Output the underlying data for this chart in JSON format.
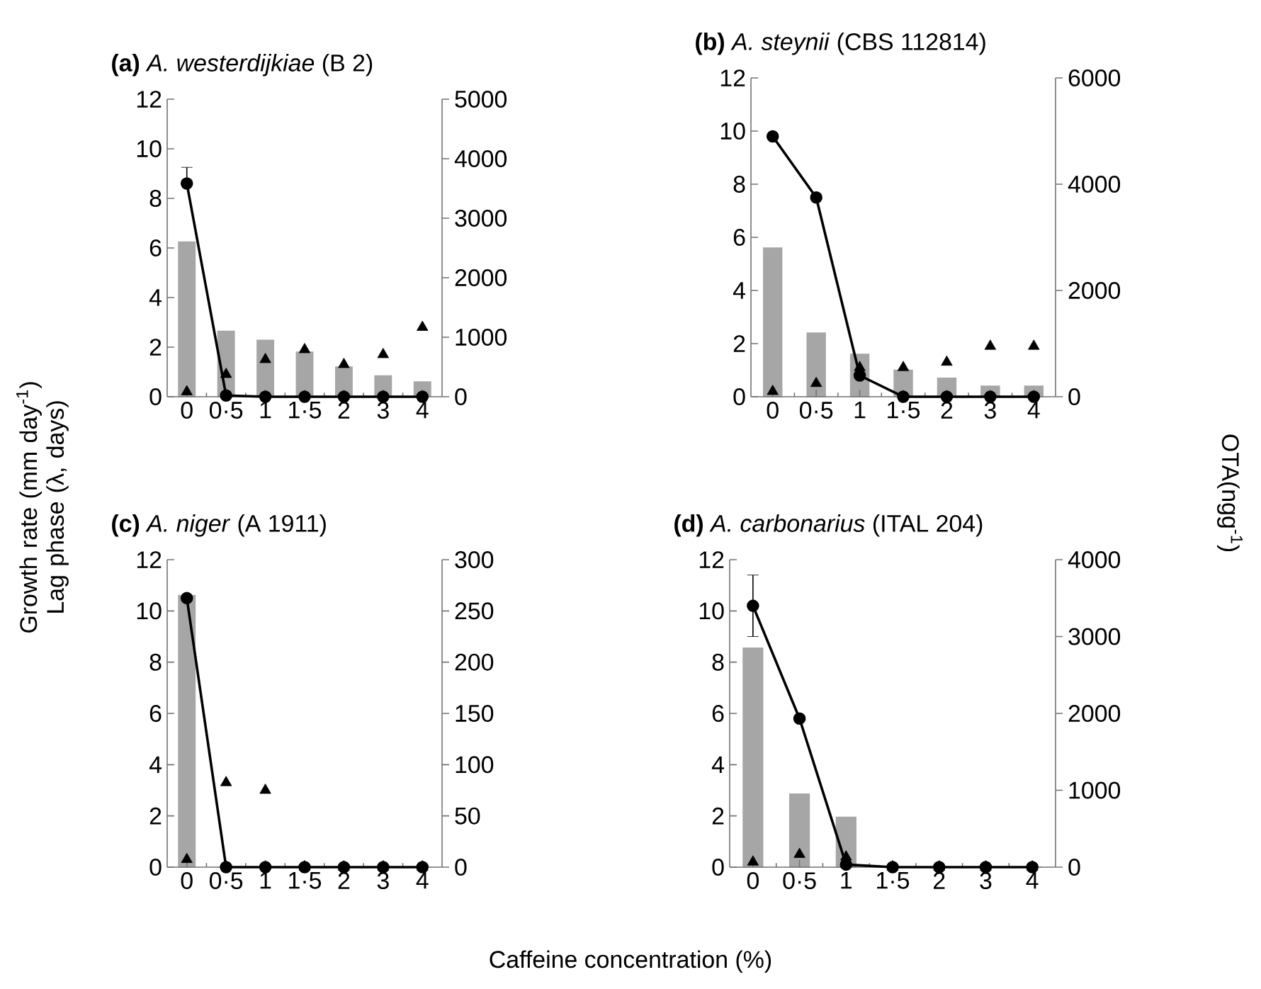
{
  "chart_data": [
    {
      "type": "bar",
      "title": "**(a)** *A. westerdijkiae* (B 2)",
      "xlabel": "Caffeine concentration (%)",
      "ylabel": "Growth rate (mm day$^{-1}$) Lag phase (λ, days)",
      "y2label": "OTA(ngg$^{-1}$)",
      "categories": [
        "0",
        "0·5",
        "1",
        "1·5",
        "2",
        "3",
        "4"
      ],
      "ylim": [
        0,
        12
      ],
      "yticks": [
        0,
        2,
        4,
        6,
        8,
        10,
        12
      ],
      "y2lim": [
        0,
        5000
      ],
      "y2ticks": [
        0,
        1000,
        2000,
        3000,
        4000,
        5000
      ],
      "series": [
        {
          "axis": "y2",
          "color": "#a6a6a6",
          "values": [
            2600,
            1100,
            950,
            750,
            500,
            350,
            250
          ]
        },
        {
          "type": "line",
          "color": "#000000",
          "marker": "circle",
          "values": [
            8.6,
            0.05,
            0,
            0,
            0,
            0,
            0
          ],
          "errors": [
            [
              8.6,
              9.25
            ],
            null,
            null,
            null,
            null,
            null,
            null
          ]
        },
        {
          "type": "scatter",
          "color": "#000000",
          "marker": "triangle",
          "values": [
            0.2,
            0.9,
            1.5,
            1.9,
            1.3,
            1.7,
            2.8
          ]
        }
      ]
    },
    {
      "type": "bar",
      "title": "**(b)** *A. steynii* (CBS 112814)",
      "categories": [
        "0",
        "0·5",
        "1",
        "1·5",
        "2",
        "3",
        "4"
      ],
      "ylim": [
        0,
        12
      ],
      "yticks": [
        0,
        2,
        4,
        6,
        8,
        10,
        12
      ],
      "y2lim": [
        0,
        6000
      ],
      "y2ticks": [
        0,
        2000,
        4000,
        6000
      ],
      "series": [
        {
          "axis": "y2",
          "color": "#a6a6a6",
          "values": [
            2800,
            1200,
            800,
            500,
            350,
            200,
            200
          ]
        },
        {
          "type": "line",
          "color": "#000000",
          "marker": "circle",
          "values": [
            9.8,
            7.5,
            0.8,
            0,
            0,
            0,
            0
          ]
        },
        {
          "type": "scatter",
          "color": "#000000",
          "marker": "triangle",
          "values": [
            0.2,
            0.5,
            1.1,
            1.1,
            1.3,
            1.9,
            1.9
          ]
        }
      ]
    },
    {
      "type": "bar",
      "title": "**(c)** *A. niger* (A 1911)",
      "categories": [
        "0",
        "0·5",
        "1",
        "1·5",
        "2",
        "3",
        "4"
      ],
      "ylim": [
        0,
        12
      ],
      "yticks": [
        0,
        2,
        4,
        6,
        8,
        10,
        12
      ],
      "y2lim": [
        0,
        300
      ],
      "y2ticks": [
        0,
        50,
        100,
        150,
        200,
        250,
        300
      ],
      "series": [
        {
          "axis": "y2",
          "color": "#a6a6a6",
          "values": [
            265,
            0,
            0,
            0,
            0,
            0,
            0
          ]
        },
        {
          "type": "line",
          "color": "#000000",
          "marker": "circle",
          "values": [
            10.5,
            0,
            0,
            0,
            0,
            0,
            0
          ]
        },
        {
          "type": "scatter",
          "color": "#000000",
          "marker": "triangle",
          "values": [
            0.3,
            3.3,
            3.0,
            0,
            0,
            0,
            0
          ]
        }
      ]
    },
    {
      "type": "bar",
      "title": "**(d)** *A. carbonarius* (ITAL 204)",
      "categories": [
        "0",
        "0·5",
        "1",
        "1·5",
        "2",
        "3",
        "4"
      ],
      "ylim": [
        0,
        12
      ],
      "yticks": [
        0,
        2,
        4,
        6,
        8,
        10,
        12
      ],
      "y2lim": [
        0,
        4000
      ],
      "y2ticks": [
        0,
        1000,
        2000,
        3000,
        4000
      ],
      "series": [
        {
          "axis": "y2",
          "color": "#a6a6a6",
          "values": [
            2850,
            950,
            650,
            0,
            0,
            0,
            0
          ]
        },
        {
          "type": "line",
          "color": "#000000",
          "marker": "circle",
          "values": [
            10.2,
            5.8,
            0.1,
            0,
            0,
            0,
            0
          ],
          "errors": [
            1.2,
            null,
            null,
            null,
            null,
            null,
            null
          ]
        },
        {
          "type": "scatter",
          "color": "#000000",
          "marker": "triangle",
          "values": [
            0.2,
            0.5,
            0.4,
            0,
            0,
            0,
            0
          ]
        }
      ]
    }
  ]
}
